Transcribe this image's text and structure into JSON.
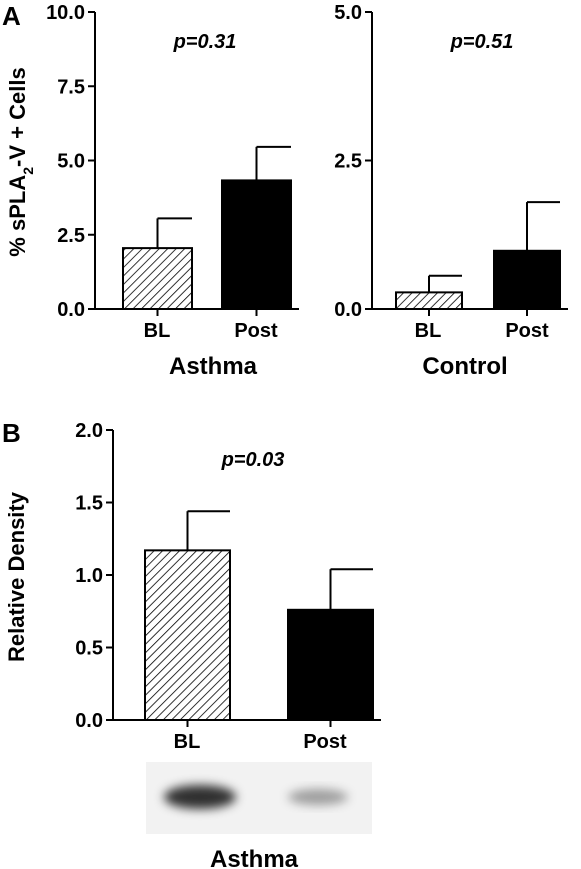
{
  "chart_data": [
    {
      "type": "bar",
      "panel": "A",
      "categories": [
        "BL",
        "Post"
      ],
      "series": [
        {
          "values": [
            2.05,
            4.33
          ],
          "errors": [
            1.0,
            1.13
          ]
        }
      ],
      "patterns": [
        "hatched",
        "solid"
      ],
      "ylabel_prefix": "% sPLA",
      "ylabel_sub": "2",
      "ylabel_suffix": "-V + Cells",
      "ylim": [
        0,
        10
      ],
      "yticks": [
        "0.0",
        "2.5",
        "5.0",
        "7.5",
        "10.0"
      ],
      "annotation": "p=0.31",
      "group_label": "Asthma"
    },
    {
      "type": "bar",
      "panel": "A",
      "categories": [
        "BL",
        "Post"
      ],
      "series": [
        {
          "values": [
            0.28,
            0.98
          ],
          "errors": [
            0.28,
            0.82
          ]
        }
      ],
      "patterns": [
        "hatched",
        "solid"
      ],
      "ylim": [
        0,
        5
      ],
      "yticks": [
        "0.0",
        "2.5",
        "5.0"
      ],
      "annotation": "p=0.51",
      "group_label": "Control"
    },
    {
      "type": "bar",
      "panel": "B",
      "categories": [
        "BL",
        "Post"
      ],
      "series": [
        {
          "values": [
            1.17,
            0.76
          ],
          "errors": [
            0.27,
            0.28
          ]
        }
      ],
      "patterns": [
        "hatched",
        "solid"
      ],
      "ylabel": "Relative Density",
      "ylim": [
        0,
        2
      ],
      "yticks": [
        "0.0",
        "0.5",
        "1.0",
        "1.5",
        "2.0"
      ],
      "annotation": "p=0.03",
      "group_label": "Asthma"
    }
  ],
  "blot": {
    "bands": [
      {
        "label": "BL",
        "intensity": 0.8
      },
      {
        "label": "Post",
        "intensity": 0.35
      }
    ]
  },
  "colors": {
    "solid": "#000000",
    "hatch": "#000000",
    "background": "#ffffff",
    "blot_background": "#f2f2f2"
  }
}
